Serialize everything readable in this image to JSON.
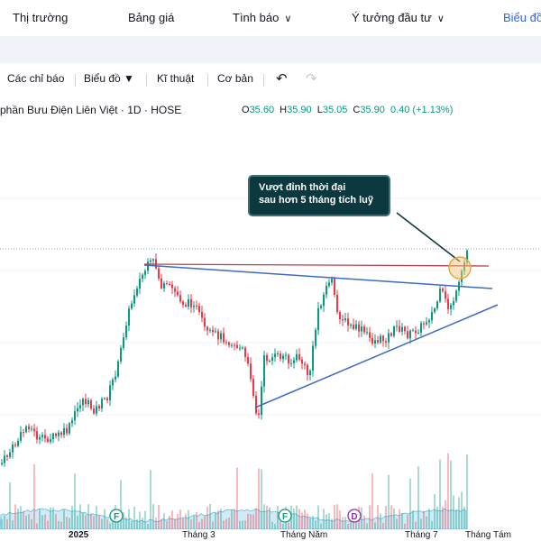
{
  "nav": {
    "items": [
      {
        "label": "Thị trường",
        "dropdown": false
      },
      {
        "label": "Bảng giá",
        "dropdown": false
      },
      {
        "label": "Tình báo",
        "dropdown": true
      },
      {
        "label": "Ý tưởng đầu tư",
        "dropdown": true
      },
      {
        "label": "Biểu đồ",
        "dropdown": false,
        "active": true
      }
    ]
  },
  "toolbar": {
    "indicators_label": "Các chỉ báo",
    "chart_type_label": "Biểu đồ ▼",
    "technical_label": "Kĩ thuật",
    "basic_label": "Cơ bản",
    "undo_icon": "undo-icon",
    "redo_icon": "redo-icon"
  },
  "legend": {
    "symbol": "phần Bưu Điện Liên Việt · 1D · HOSE",
    "open_label": "O",
    "open": "35.60",
    "high_label": "H",
    "high": "35.90",
    "low_label": "L",
    "low": "35.05",
    "close_label": "C",
    "close": "35.90",
    "change": "0.40 (+1.13%)",
    "up_color": "#089981"
  },
  "annotation": {
    "line1": "Vượt đỉnh thời đại",
    "line2": "sau hơn 5 tháng tích luỹ"
  },
  "xaxis": {
    "labels": [
      "2025",
      "Tháng 3",
      "Tháng Năm",
      "Tháng 7",
      "Tháng Tám"
    ]
  },
  "markers": [
    {
      "label": "F"
    },
    {
      "label": "F"
    },
    {
      "label": "D"
    }
  ],
  "colors": {
    "up": "#089981",
    "down": "#f23645",
    "trendline": "#3d6bc4",
    "resistance": "#b0414c",
    "link": "#2962ff"
  }
}
